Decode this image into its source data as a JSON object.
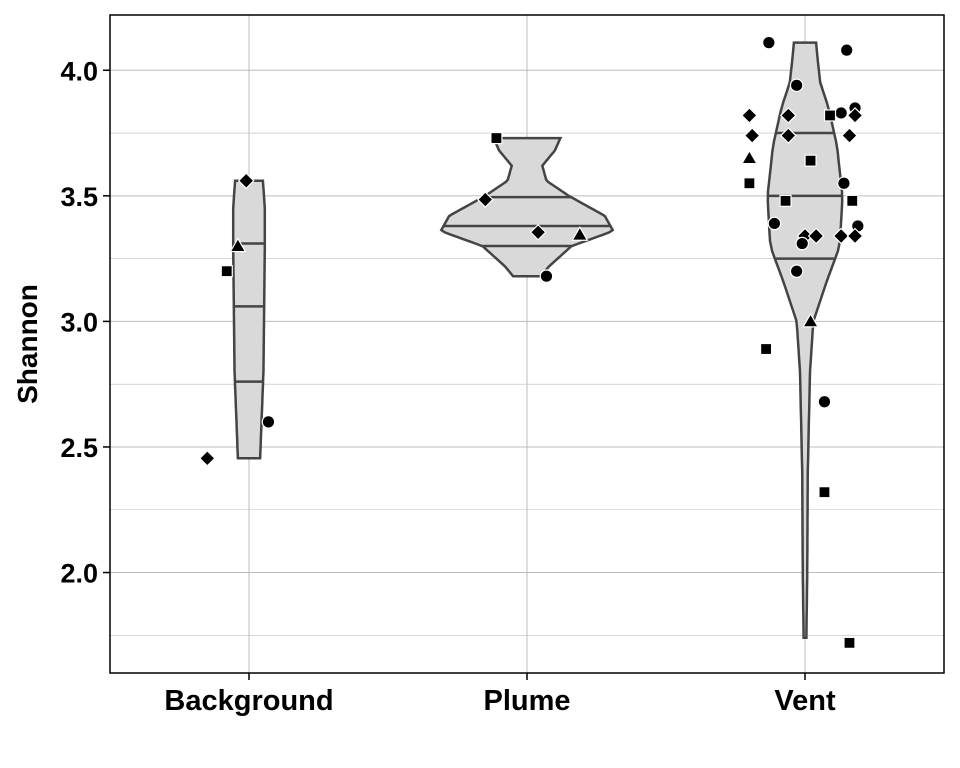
{
  "chart_data": {
    "type": "violin",
    "title": "",
    "xlabel": "",
    "ylabel": "Shannon",
    "categories": [
      "Background",
      "Plume",
      "Vent"
    ],
    "ylim": [
      1.6,
      4.22
    ],
    "yticks": [
      2.0,
      2.5,
      3.0,
      3.5,
      4.0
    ],
    "ytick_labels": [
      "2.0",
      "2.5",
      "3.0",
      "3.5",
      "4.0"
    ],
    "grid": true,
    "legend": "none",
    "colors": {
      "violin_fill": "#d9d9d9",
      "violin_stroke": "#444444",
      "grid": "#bdbdbd",
      "point": "#000000"
    },
    "violins": [
      {
        "category": "Background",
        "quantiles": [
          2.76,
          3.06,
          3.31
        ],
        "profile": [
          [
            2.455,
            0.04
          ],
          [
            2.8,
            0.052
          ],
          [
            3.1,
            0.055
          ],
          [
            3.3,
            0.057
          ],
          [
            3.45,
            0.057
          ],
          [
            3.56,
            0.05
          ]
        ]
      },
      {
        "category": "Plume",
        "quantiles": [
          3.3,
          3.38,
          3.495
        ],
        "profile": [
          [
            3.18,
            0.05
          ],
          [
            3.22,
            0.08
          ],
          [
            3.3,
            0.16
          ],
          [
            3.36,
            0.31
          ],
          [
            3.42,
            0.28
          ],
          [
            3.5,
            0.15
          ],
          [
            3.56,
            0.07
          ],
          [
            3.62,
            0.055
          ],
          [
            3.68,
            0.1
          ],
          [
            3.73,
            0.12
          ]
        ]
      },
      {
        "category": "Vent",
        "quantiles": [
          3.25,
          3.5,
          3.75
        ],
        "profile": [
          [
            1.74,
            0.005
          ],
          [
            2.0,
            0.008
          ],
          [
            2.4,
            0.01
          ],
          [
            2.8,
            0.018
          ],
          [
            3.0,
            0.03
          ],
          [
            3.15,
            0.075
          ],
          [
            3.3,
            0.125
          ],
          [
            3.5,
            0.135
          ],
          [
            3.7,
            0.115
          ],
          [
            3.85,
            0.085
          ],
          [
            3.95,
            0.055
          ],
          [
            4.05,
            0.045
          ],
          [
            4.11,
            0.04
          ]
        ]
      }
    ],
    "points": [
      {
        "category": "Background",
        "shape": "diamond",
        "jitter": -0.15,
        "y": 2.455
      },
      {
        "category": "Background",
        "shape": "square",
        "jitter": -0.08,
        "y": 3.2
      },
      {
        "category": "Background",
        "shape": "triangle",
        "jitter": -0.04,
        "y": 3.3
      },
      {
        "category": "Background",
        "shape": "diamond",
        "jitter": -0.01,
        "y": 3.56
      },
      {
        "category": "Background",
        "shape": "circle",
        "jitter": 0.07,
        "y": 2.6
      },
      {
        "category": "Plume",
        "shape": "square",
        "jitter": -0.11,
        "y": 3.73
      },
      {
        "category": "Plume",
        "shape": "diamond",
        "jitter": -0.15,
        "y": 3.485
      },
      {
        "category": "Plume",
        "shape": "diamond",
        "jitter": 0.04,
        "y": 3.355
      },
      {
        "category": "Plume",
        "shape": "triangle",
        "jitter": 0.19,
        "y": 3.345
      },
      {
        "category": "Plume",
        "shape": "circle",
        "jitter": 0.07,
        "y": 3.18
      },
      {
        "category": "Vent",
        "shape": "circle",
        "jitter": -0.13,
        "y": 4.11
      },
      {
        "category": "Vent",
        "shape": "circle",
        "jitter": 0.15,
        "y": 4.08
      },
      {
        "category": "Vent",
        "shape": "circle",
        "jitter": -0.03,
        "y": 3.94
      },
      {
        "category": "Vent",
        "shape": "circle",
        "jitter": 0.18,
        "y": 3.85
      },
      {
        "category": "Vent",
        "shape": "circle",
        "jitter": 0.13,
        "y": 3.83
      },
      {
        "category": "Vent",
        "shape": "diamond",
        "jitter": -0.2,
        "y": 3.82
      },
      {
        "category": "Vent",
        "shape": "diamond",
        "jitter": -0.06,
        "y": 3.82
      },
      {
        "category": "Vent",
        "shape": "square",
        "jitter": 0.09,
        "y": 3.82
      },
      {
        "category": "Vent",
        "shape": "diamond",
        "jitter": 0.18,
        "y": 3.82
      },
      {
        "category": "Vent",
        "shape": "diamond",
        "jitter": -0.19,
        "y": 3.74
      },
      {
        "category": "Vent",
        "shape": "diamond",
        "jitter": -0.06,
        "y": 3.74
      },
      {
        "category": "Vent",
        "shape": "diamond",
        "jitter": 0.16,
        "y": 3.74
      },
      {
        "category": "Vent",
        "shape": "triangle",
        "jitter": -0.2,
        "y": 3.65
      },
      {
        "category": "Vent",
        "shape": "square",
        "jitter": 0.02,
        "y": 3.64
      },
      {
        "category": "Vent",
        "shape": "square",
        "jitter": -0.2,
        "y": 3.55
      },
      {
        "category": "Vent",
        "shape": "circle",
        "jitter": 0.14,
        "y": 3.55
      },
      {
        "category": "Vent",
        "shape": "square",
        "jitter": -0.07,
        "y": 3.48
      },
      {
        "category": "Vent",
        "shape": "square",
        "jitter": 0.17,
        "y": 3.48
      },
      {
        "category": "Vent",
        "shape": "circle",
        "jitter": -0.11,
        "y": 3.39
      },
      {
        "category": "Vent",
        "shape": "circle",
        "jitter": 0.19,
        "y": 3.38
      },
      {
        "category": "Vent",
        "shape": "diamond",
        "jitter": 0.0,
        "y": 3.34
      },
      {
        "category": "Vent",
        "shape": "diamond",
        "jitter": 0.04,
        "y": 3.34
      },
      {
        "category": "Vent",
        "shape": "diamond",
        "jitter": 0.13,
        "y": 3.34
      },
      {
        "category": "Vent",
        "shape": "diamond",
        "jitter": 0.18,
        "y": 3.34
      },
      {
        "category": "Vent",
        "shape": "circle",
        "jitter": -0.01,
        "y": 3.31
      },
      {
        "category": "Vent",
        "shape": "circle",
        "jitter": -0.03,
        "y": 3.2
      },
      {
        "category": "Vent",
        "shape": "triangle",
        "jitter": 0.02,
        "y": 3.0
      },
      {
        "category": "Vent",
        "shape": "square",
        "jitter": -0.14,
        "y": 2.89
      },
      {
        "category": "Vent",
        "shape": "circle",
        "jitter": 0.07,
        "y": 2.68
      },
      {
        "category": "Vent",
        "shape": "square",
        "jitter": 0.07,
        "y": 2.32
      },
      {
        "category": "Vent",
        "shape": "square",
        "jitter": 0.16,
        "y": 1.72
      }
    ]
  }
}
